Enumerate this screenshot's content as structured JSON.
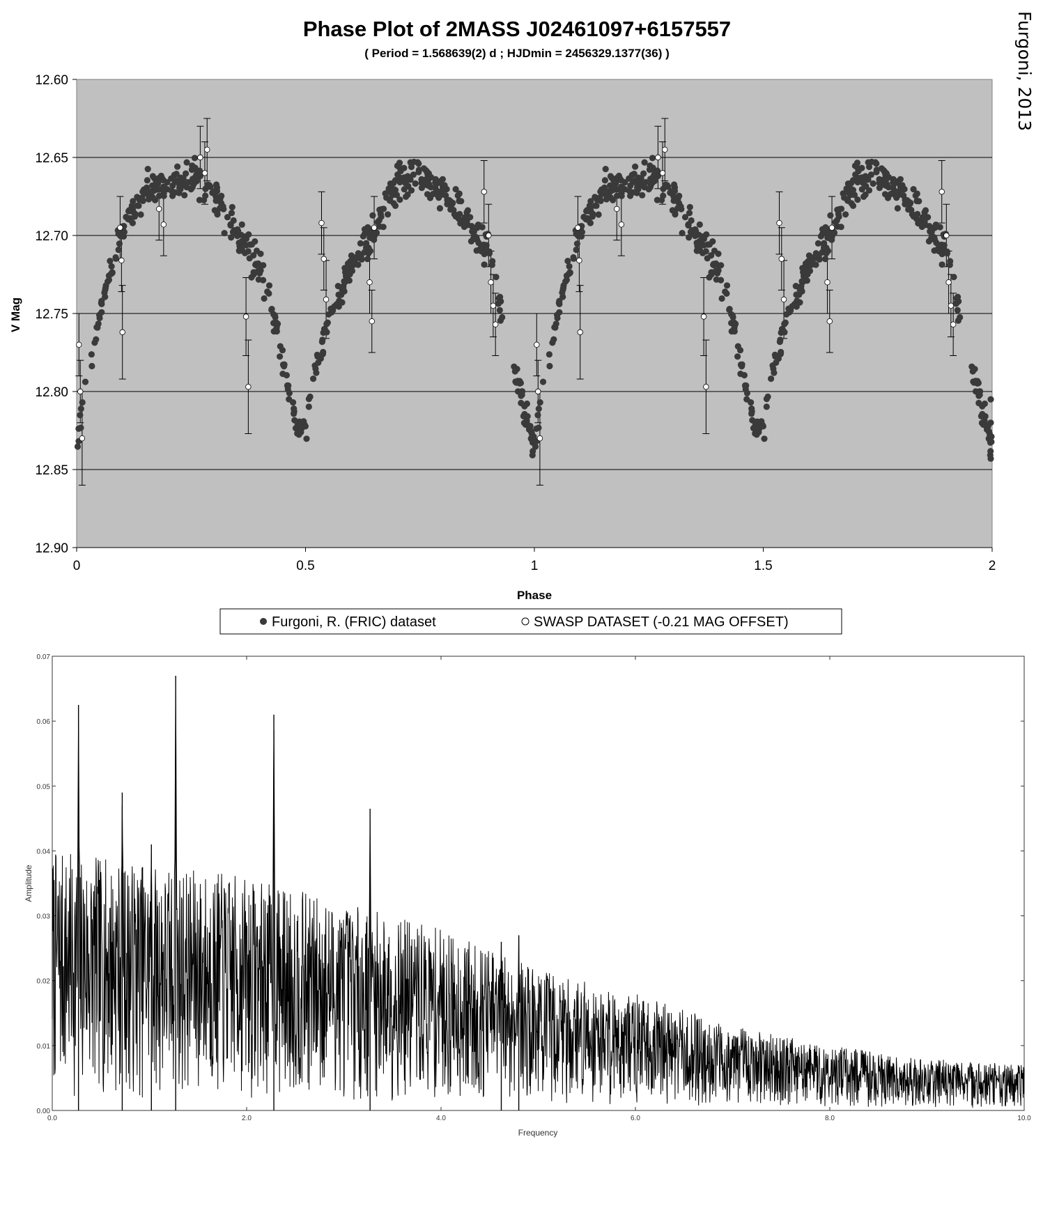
{
  "credit": "Furgoni, 2013",
  "chart_data": [
    {
      "type": "scatter",
      "title": "Phase Plot of 2MASS J02461097+6157557",
      "subtitle": "( Period =  1.568639(2) d ; HJDmin = 2456329.1377(36) )",
      "xlabel": "Phase",
      "ylabel": "V Mag",
      "xlim": [
        0,
        2
      ],
      "ylim": [
        12.6,
        12.9
      ],
      "y_inverted": true,
      "xticks": [
        "0",
        "0.5",
        "1",
        "1.5",
        "2"
      ],
      "yticks": [
        "12.60",
        "12.65",
        "12.70",
        "12.75",
        "12.80",
        "12.85",
        "12.90"
      ],
      "grid": "horizontal",
      "plot_background": "#c0c0c0",
      "legend_position": "bottom-center",
      "series": [
        {
          "name": "Furgoni, R. (FRIC) dataset",
          "marker": "filled-circle",
          "color": "#3a3a3a",
          "curve_phase": [
            0.0,
            0.02,
            0.05,
            0.08,
            0.1,
            0.15,
            0.2,
            0.25,
            0.3,
            0.35,
            0.4,
            0.43,
            0.46,
            0.48,
            0.5,
            0.52,
            0.55,
            0.6,
            0.65,
            0.7,
            0.75,
            0.8,
            0.85,
            0.9,
            0.95,
            1.0
          ],
          "curve_mag": [
            12.835,
            12.79,
            12.75,
            12.715,
            12.695,
            12.672,
            12.665,
            12.662,
            12.675,
            12.7,
            12.72,
            12.75,
            12.795,
            12.82,
            12.825,
            12.79,
            12.755,
            12.72,
            12.695,
            12.668,
            12.66,
            12.672,
            12.69,
            12.71,
            12.78,
            12.835
          ]
        },
        {
          "name": "SWASP DATASET (-0.21 MAG OFFSET)",
          "marker": "open-circle",
          "color": "#ffffff",
          "points": [
            {
              "phase": 0.005,
              "mag": 12.77,
              "err": 0.02
            },
            {
              "phase": 0.008,
              "mag": 12.8,
              "err": 0.02
            },
            {
              "phase": 0.012,
              "mag": 12.83,
              "err": 0.03
            },
            {
              "phase": 0.095,
              "mag": 12.695,
              "err": 0.02
            },
            {
              "phase": 0.098,
              "mag": 12.716,
              "err": 0.02
            },
            {
              "phase": 0.1,
              "mag": 12.762,
              "err": 0.03
            },
            {
              "phase": 0.18,
              "mag": 12.683,
              "err": 0.02
            },
            {
              "phase": 0.19,
              "mag": 12.693,
              "err": 0.02
            },
            {
              "phase": 0.27,
              "mag": 12.65,
              "err": 0.02
            },
            {
              "phase": 0.28,
              "mag": 12.66,
              "err": 0.02
            },
            {
              "phase": 0.285,
              "mag": 12.645,
              "err": 0.02
            },
            {
              "phase": 0.37,
              "mag": 12.752,
              "err": 0.025
            },
            {
              "phase": 0.375,
              "mag": 12.797,
              "err": 0.03
            },
            {
              "phase": 0.535,
              "mag": 12.692,
              "err": 0.02
            },
            {
              "phase": 0.54,
              "mag": 12.715,
              "err": 0.02
            },
            {
              "phase": 0.545,
              "mag": 12.741,
              "err": 0.025
            },
            {
              "phase": 0.64,
              "mag": 12.73,
              "err": 0.02
            },
            {
              "phase": 0.645,
              "mag": 12.755,
              "err": 0.02
            },
            {
              "phase": 0.65,
              "mag": 12.695,
              "err": 0.02
            },
            {
              "phase": 0.89,
              "mag": 12.672,
              "err": 0.02
            },
            {
              "phase": 0.9,
              "mag": 12.7,
              "err": 0.02
            },
            {
              "phase": 0.905,
              "mag": 12.73,
              "err": 0.02
            },
            {
              "phase": 0.91,
              "mag": 12.745,
              "err": 0.02
            },
            {
              "phase": 0.915,
              "mag": 12.757,
              "err": 0.02
            }
          ]
        }
      ]
    },
    {
      "type": "line",
      "title": "",
      "xlabel": "Frequency",
      "ylabel": "Amplitude",
      "xlim": [
        0.0,
        10.0
      ],
      "ylim": [
        0.0,
        0.07
      ],
      "xticks": [
        "0.0",
        "2.0",
        "4.0",
        "6.0",
        "8.0",
        "10.0"
      ],
      "yticks": [
        "0.00",
        "0.01",
        "0.02",
        "0.03",
        "0.04",
        "0.05",
        "0.06",
        "0.07"
      ],
      "series": [
        {
          "name": "",
          "color": "#000000",
          "envelope_frequency": [
            0.0,
            1.0,
            2.0,
            3.0,
            4.0,
            5.0,
            6.0,
            7.0,
            8.0,
            9.0,
            10.0
          ],
          "envelope_amplitude": [
            0.04,
            0.038,
            0.036,
            0.032,
            0.028,
            0.022,
            0.018,
            0.013,
            0.01,
            0.008,
            0.007
          ],
          "peaks": [
            {
              "frequency": 0.27,
              "amplitude": 0.0625
            },
            {
              "frequency": 0.72,
              "amplitude": 0.049
            },
            {
              "frequency": 1.02,
              "amplitude": 0.041
            },
            {
              "frequency": 1.27,
              "amplitude": 0.067
            },
            {
              "frequency": 2.28,
              "amplitude": 0.061
            },
            {
              "frequency": 3.27,
              "amplitude": 0.0465
            },
            {
              "frequency": 4.62,
              "amplitude": 0.026
            },
            {
              "frequency": 4.8,
              "amplitude": 0.027
            }
          ]
        }
      ]
    }
  ],
  "legend": {
    "fric_label": "Furgoni, R. (FRIC) dataset",
    "swasp_label": "SWASP DATASET (-0.21 MAG OFFSET)"
  }
}
